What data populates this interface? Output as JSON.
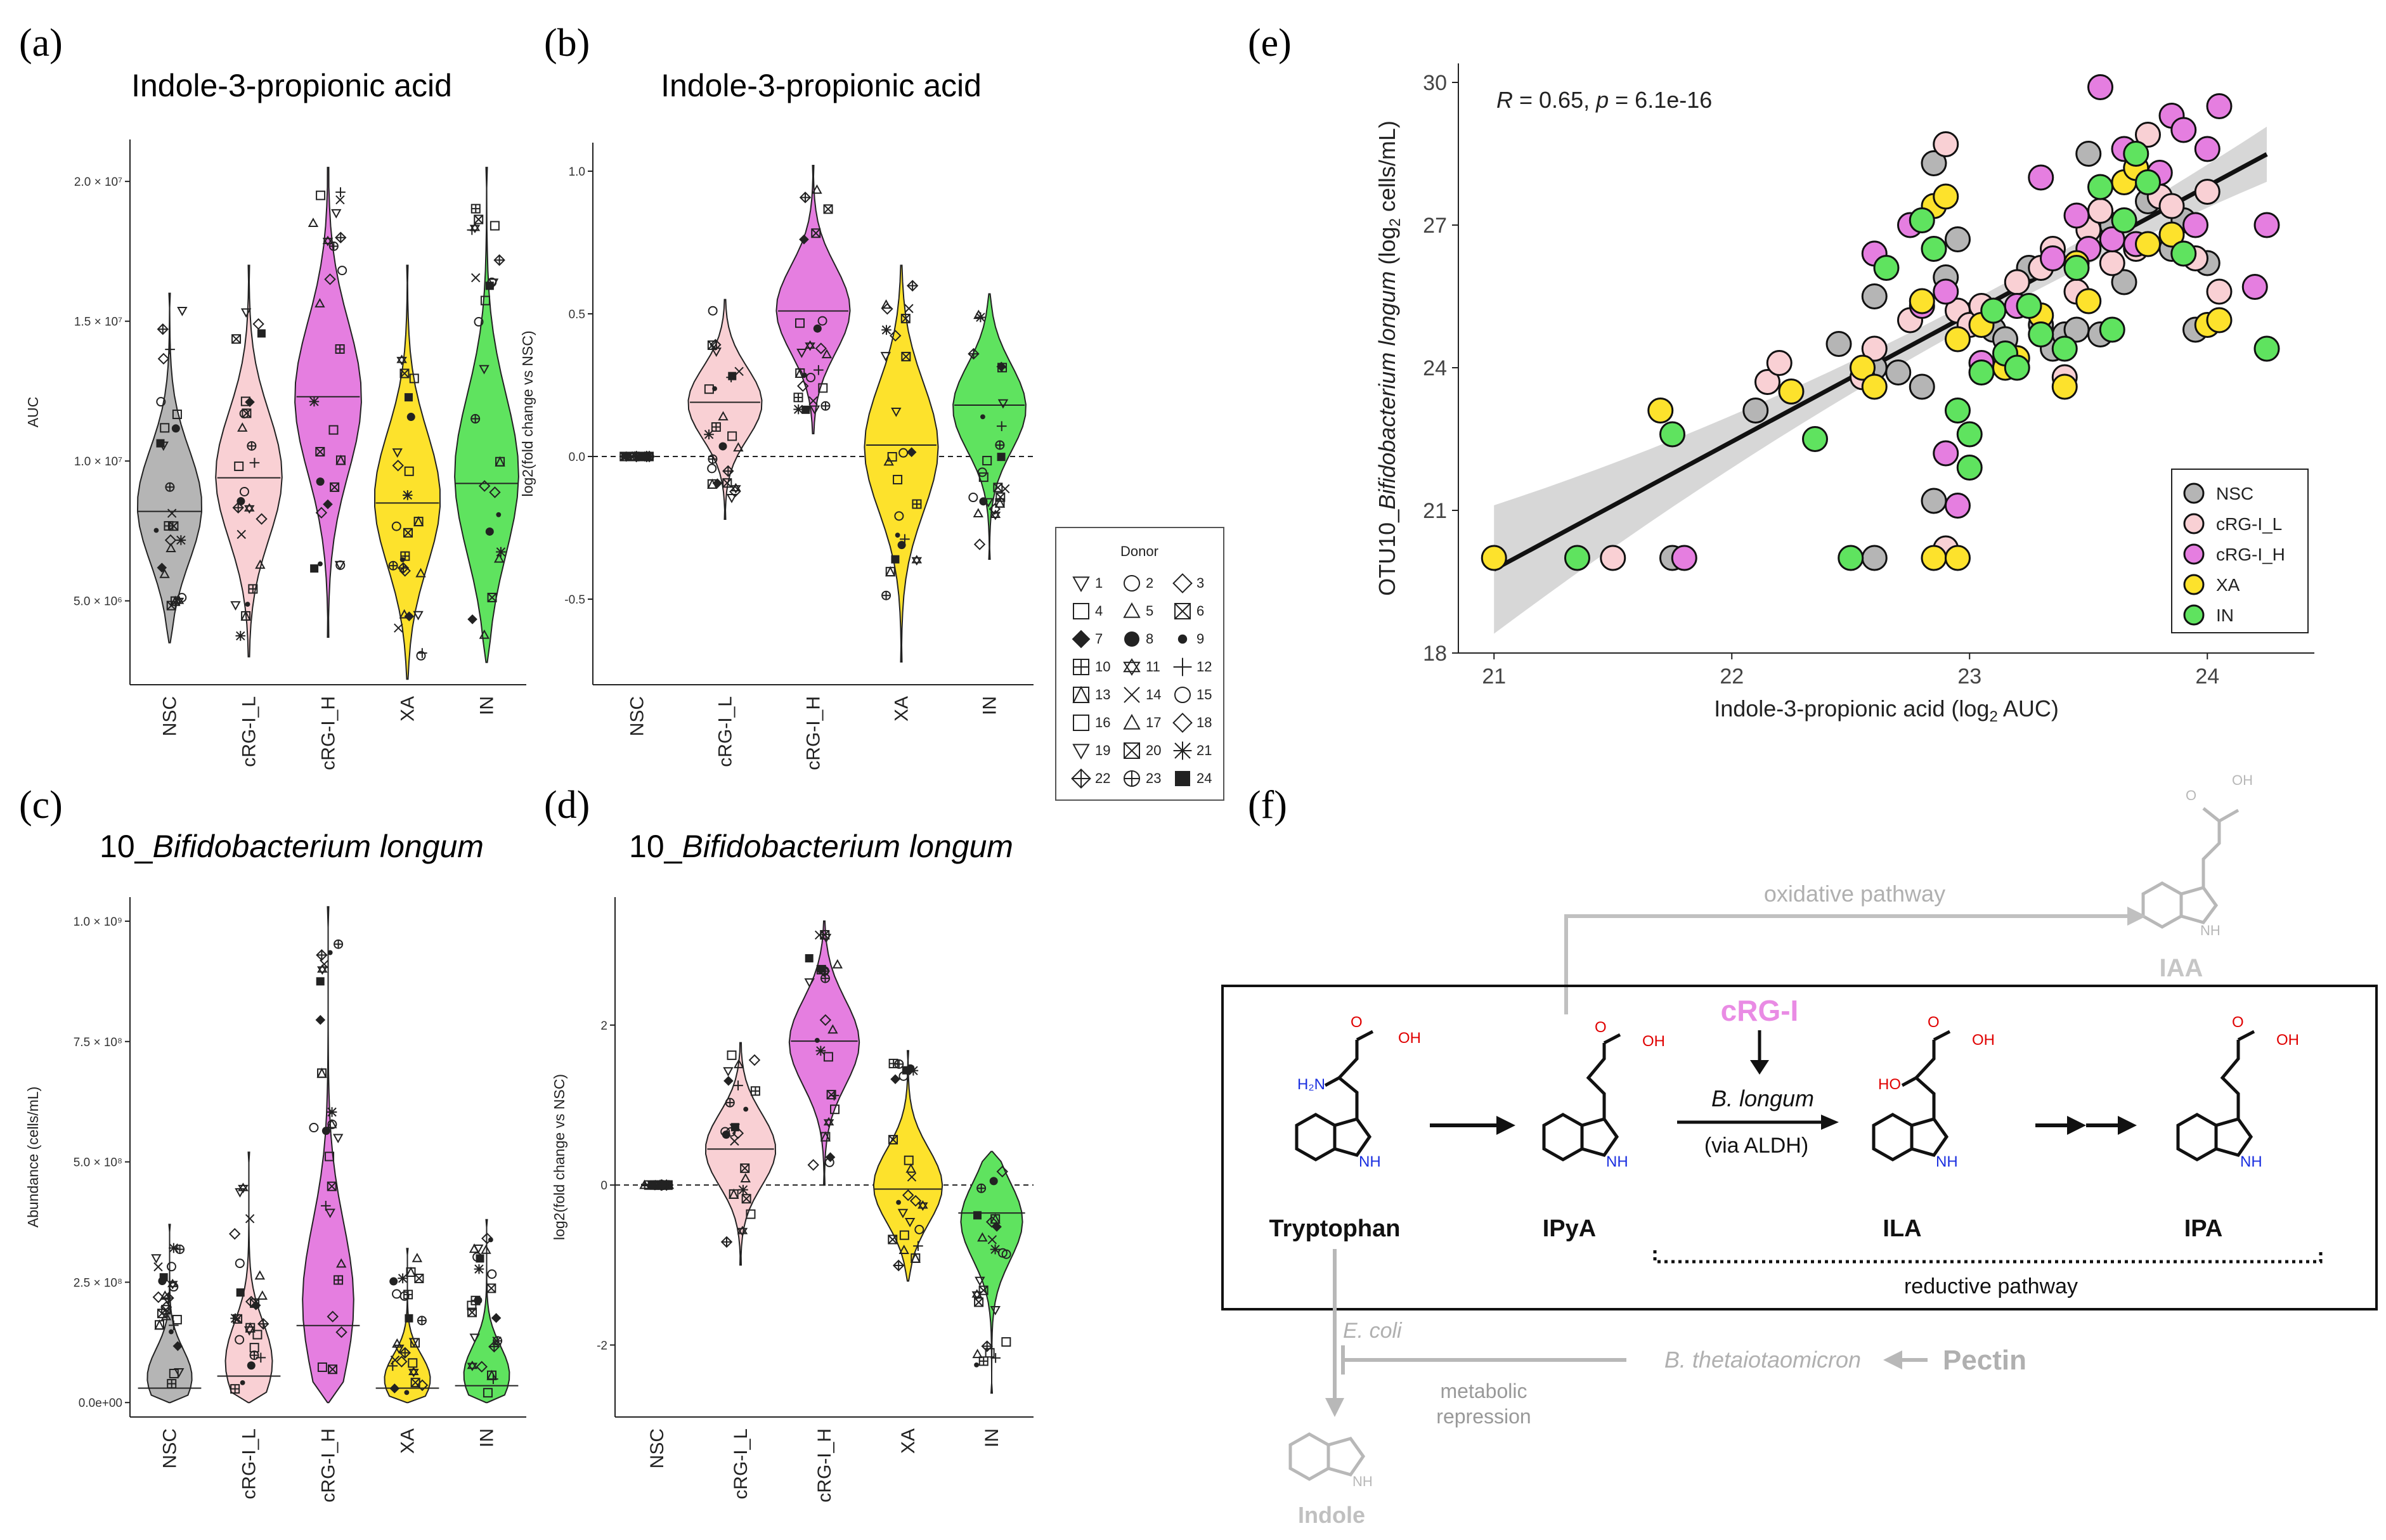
{
  "groups": [
    "NSC",
    "cRG-I_L",
    "cRG-I_H",
    "XA",
    "IN"
  ],
  "colors": {
    "NSC": "#b5b5b5",
    "cRG-I_L": "#f9d0d4",
    "cRG-I_H": "#e57ee0",
    "XA": "#fde22c",
    "IN": "#5fe35f",
    "grey_path": "#b8b8b8",
    "cRG": "#e98be4",
    "red": "#e00000",
    "blue": "#1a2fe0"
  },
  "chart_data": [
    {
      "panel": "(a)",
      "type": "violin",
      "title": "Indole-3-propionic acid",
      "ylabel": "AUC",
      "yticks": [
        "5.0 × 10⁶",
        "1.0 × 10⁷",
        "1.5 × 10⁷",
        "2.0 × 10⁷"
      ],
      "ytick_values": [
        5000000,
        10000000,
        15000000,
        20000000
      ],
      "ylim": [
        2000000,
        21500000
      ],
      "series": [
        {
          "name": "NSC",
          "min": 3500000,
          "max": 16000000,
          "median": 8200000
        },
        {
          "name": "cRG-I_L",
          "min": 3000000,
          "max": 17000000,
          "median": 9400000
        },
        {
          "name": "cRG-I_H",
          "min": 3700000,
          "max": 20500000,
          "median": 12300000
        },
        {
          "name": "XA",
          "min": 2200000,
          "max": 17000000,
          "median": 8500000
        },
        {
          "name": "IN",
          "min": 2800000,
          "max": 20500000,
          "median": 9200000
        }
      ]
    },
    {
      "panel": "(b)",
      "type": "violin",
      "title": "Indole-3-propionic acid",
      "ylabel": "log2(fold change vs NSC)",
      "yticks": [
        "-0.5",
        "0.0",
        "0.5",
        "1.0"
      ],
      "ytick_values": [
        -0.5,
        0.0,
        0.5,
        1.0
      ],
      "ylim": [
        -0.8,
        1.1
      ],
      "reference_line": 0,
      "series": [
        {
          "name": "NSC",
          "min": 0,
          "max": 0,
          "median": 0
        },
        {
          "name": "cRG-I_L",
          "min": -0.22,
          "max": 0.55,
          "median": 0.19
        },
        {
          "name": "cRG-I_H",
          "min": 0.08,
          "max": 1.02,
          "median": 0.51
        },
        {
          "name": "XA",
          "min": -0.72,
          "max": 0.67,
          "median": 0.04
        },
        {
          "name": "IN",
          "min": -0.36,
          "max": 0.57,
          "median": 0.18
        }
      ]
    },
    {
      "panel": "(c)",
      "type": "violin",
      "title_prefix": "10_",
      "title_italic": "Bifidobacterium longum",
      "ylabel": "Abundance (cells/mL)",
      "yticks": [
        "0.0e+00",
        "2.5 × 10⁸",
        "5.0 × 10⁸",
        "7.5 × 10⁸",
        "1.0 × 10⁹"
      ],
      "ytick_values": [
        0,
        250000000,
        500000000,
        750000000,
        1000000000
      ],
      "ylim": [
        -30000000,
        1050000000
      ],
      "series": [
        {
          "name": "NSC",
          "min": 0,
          "max": 370000000,
          "median": 30000000
        },
        {
          "name": "cRG-I_L",
          "min": 0,
          "max": 520000000,
          "median": 55000000
        },
        {
          "name": "cRG-I_H",
          "min": 0,
          "max": 1030000000,
          "median": 160000000
        },
        {
          "name": "XA",
          "min": 0,
          "max": 320000000,
          "median": 30000000
        },
        {
          "name": "IN",
          "min": 0,
          "max": 380000000,
          "median": 35000000
        }
      ]
    },
    {
      "panel": "(d)",
      "type": "violin",
      "title_prefix": "10_",
      "title_italic": "Bifidobacterium longum",
      "ylabel": "log2(fold change vs NSC)",
      "yticks": [
        "-2",
        "0",
        "2"
      ],
      "ytick_values": [
        -2,
        0,
        2
      ],
      "ylim": [
        -2.9,
        3.6
      ],
      "reference_line": 0,
      "series": [
        {
          "name": "NSC",
          "min": 0,
          "max": 0,
          "median": 0
        },
        {
          "name": "cRG-I_L",
          "min": -1.0,
          "max": 1.78,
          "median": 0.45
        },
        {
          "name": "cRG-I_H",
          "min": 0.0,
          "max": 3.3,
          "median": 1.8
        },
        {
          "name": "XA",
          "min": -1.2,
          "max": 1.68,
          "median": -0.05
        },
        {
          "name": "IN",
          "min": -2.6,
          "max": 0.42,
          "median": -0.35
        }
      ]
    },
    {
      "panel": "(e)",
      "type": "scatter",
      "annotation_R": "R",
      "annotation_rest": " = 0.65, ",
      "annotation_p": "p",
      "annotation_p_rest": " = 6.1e-16",
      "xlabel": "Indole-3-propionic acid (log",
      "xlabel_sub": "2",
      "xlabel_end": " AUC)",
      "ylabel_pre": "OTU10_",
      "ylabel_italic": "Bifidobacterium longum",
      "ylabel_mid": " (log",
      "ylabel_sub": "2",
      "ylabel_end": " cells/mL)",
      "xlim": [
        20.85,
        24.45
      ],
      "ylim": [
        18,
        30.4
      ],
      "xticks": [
        "21",
        "22",
        "23",
        "24"
      ],
      "yticks": [
        "18",
        "21",
        "24",
        "27",
        "30"
      ],
      "regression": {
        "intercept": -36.67,
        "slope": 2.687,
        "x_range": [
          21.0,
          24.25
        ]
      },
      "series": [
        {
          "name": "NSC",
          "points": [
            [
              21.75,
              20
            ],
            [
              22.6,
              20
            ],
            [
              22.85,
              21.2
            ],
            [
              22.1,
              23.1
            ],
            [
              22.45,
              24.5
            ],
            [
              22.6,
              25.5
            ],
            [
              22.6,
              24
            ],
            [
              22.7,
              23.9
            ],
            [
              22.8,
              23.6
            ],
            [
              22.85,
              28.3
            ],
            [
              22.9,
              25.9
            ],
            [
              22.95,
              26.7
            ],
            [
              23.0,
              25.1
            ],
            [
              23.1,
              24.8
            ],
            [
              23.15,
              24.6
            ],
            [
              23.25,
              26.1
            ],
            [
              23.3,
              24.9
            ],
            [
              23.35,
              24.4
            ],
            [
              23.4,
              24.7
            ],
            [
              23.45,
              24.8
            ],
            [
              23.55,
              24.7
            ],
            [
              23.5,
              28.5
            ],
            [
              23.55,
              27.3
            ],
            [
              23.6,
              27.0
            ],
            [
              23.65,
              25.8
            ],
            [
              23.75,
              27.5
            ],
            [
              23.85,
              26.5
            ],
            [
              23.9,
              27.1
            ],
            [
              23.95,
              24.8
            ],
            [
              24.0,
              26.2
            ]
          ]
        },
        {
          "name": "cRG-I_L",
          "points": [
            [
              21.5,
              20
            ],
            [
              22.9,
              20.2
            ],
            [
              22.15,
              23.7
            ],
            [
              22.2,
              24.1
            ],
            [
              22.55,
              23.8
            ],
            [
              22.6,
              24.4
            ],
            [
              22.9,
              28.7
            ],
            [
              22.95,
              25.2
            ],
            [
              23.0,
              24.9
            ],
            [
              23.05,
              25.3
            ],
            [
              23.2,
              25.8
            ],
            [
              23.3,
              26.1
            ],
            [
              23.35,
              26.5
            ],
            [
              23.4,
              23.8
            ],
            [
              23.45,
              25.6
            ],
            [
              23.5,
              26.9
            ],
            [
              23.55,
              27.3
            ],
            [
              23.6,
              26.2
            ],
            [
              23.7,
              26.5
            ],
            [
              23.75,
              28.9
            ],
            [
              23.8,
              27.6
            ],
            [
              23.85,
              27.4
            ],
            [
              23.95,
              26.3
            ],
            [
              24.0,
              27.7
            ],
            [
              24.05,
              25.6
            ],
            [
              22.75,
              25.0
            ]
          ]
        },
        {
          "name": "cRG-I_H",
          "points": [
            [
              21.8,
              20
            ],
            [
              22.95,
              21.1
            ],
            [
              22.9,
              22.2
            ],
            [
              22.6,
              26.4
            ],
            [
              22.8,
              25.3
            ],
            [
              22.9,
              25.6
            ],
            [
              23.05,
              24.1
            ],
            [
              23.2,
              25.3
            ],
            [
              23.3,
              28.0
            ],
            [
              23.35,
              26.3
            ],
            [
              23.45,
              27.2
            ],
            [
              23.5,
              26.5
            ],
            [
              23.55,
              29.9
            ],
            [
              23.6,
              26.7
            ],
            [
              23.65,
              28.6
            ],
            [
              23.7,
              26.6
            ],
            [
              23.8,
              28.1
            ],
            [
              23.85,
              29.3
            ],
            [
              23.9,
              29.0
            ],
            [
              23.95,
              27.0
            ],
            [
              24.0,
              28.6
            ],
            [
              24.05,
              29.5
            ],
            [
              24.2,
              25.7
            ],
            [
              24.25,
              27.0
            ],
            [
              22.75,
              27.0
            ]
          ]
        },
        {
          "name": "XA",
          "points": [
            [
              21.0,
              20
            ],
            [
              22.85,
              20
            ],
            [
              22.95,
              20
            ],
            [
              21.7,
              23.1
            ],
            [
              22.25,
              23.5
            ],
            [
              22.55,
              24.0
            ],
            [
              22.6,
              23.6
            ],
            [
              22.8,
              25.4
            ],
            [
              22.85,
              27.4
            ],
            [
              22.9,
              27.6
            ],
            [
              22.95,
              24.6
            ],
            [
              23.05,
              24.9
            ],
            [
              23.2,
              24.2
            ],
            [
              23.3,
              25.1
            ],
            [
              23.4,
              23.6
            ],
            [
              23.45,
              26.2
            ],
            [
              23.5,
              25.4
            ],
            [
              23.65,
              27.9
            ],
            [
              23.7,
              28.2
            ],
            [
              23.75,
              26.6
            ],
            [
              23.85,
              26.8
            ],
            [
              24.0,
              24.9
            ],
            [
              24.05,
              25.0
            ],
            [
              23.15,
              24.0
            ]
          ]
        },
        {
          "name": "IN",
          "points": [
            [
              21.35,
              20
            ],
            [
              22.5,
              20
            ],
            [
              22.35,
              22.5
            ],
            [
              21.75,
              22.6
            ],
            [
              22.65,
              26.1
            ],
            [
              22.8,
              27.1
            ],
            [
              22.85,
              26.5
            ],
            [
              22.95,
              23.1
            ],
            [
              23.0,
              22.6
            ],
            [
              23.05,
              23.9
            ],
            [
              23.1,
              25.2
            ],
            [
              23.15,
              24.3
            ],
            [
              23.2,
              24.0
            ],
            [
              23.25,
              25.3
            ],
            [
              23.3,
              24.7
            ],
            [
              23.4,
              24.4
            ],
            [
              23.45,
              26.1
            ],
            [
              23.55,
              27.8
            ],
            [
              23.6,
              24.8
            ],
            [
              23.65,
              27.1
            ],
            [
              23.7,
              28.5
            ],
            [
              23.75,
              27.9
            ],
            [
              23.9,
              26.4
            ],
            [
              24.25,
              24.4
            ],
            [
              23.0,
              21.9
            ]
          ]
        }
      ]
    }
  ],
  "panels": {
    "a": "(a)",
    "b": "(b)",
    "c": "(c)",
    "d": "(d)",
    "e": "(e)",
    "f": "(f)"
  },
  "donor_legend": {
    "title": "Donor",
    "numbers": [
      "1",
      "2",
      "3",
      "4",
      "5",
      "6",
      "7",
      "8",
      "9",
      "10",
      "11",
      "12",
      "13",
      "14",
      "15",
      "16",
      "17",
      "18",
      "19",
      "20",
      "21",
      "22",
      "23",
      "24"
    ]
  },
  "pathway": {
    "oxidative": "oxidative pathway",
    "reductive": "reductive pathway",
    "crg": "cRG-I",
    "blongum": "B. longum",
    "via": "(via ALDH)",
    "tryptophan": "Tryptophan",
    "ipya": "IPyA",
    "ila": "ILA",
    "ipa": "IPA",
    "iaa": "IAA",
    "indole": "Indole",
    "ecoli": "E. coli",
    "btheta": "B. thetaiotaomicron",
    "pectin": "Pectin",
    "metabolic": "metabolic",
    "repression": "repression",
    "oh": "OH",
    "o": "O",
    "nh": "NH",
    "h2n": "H₂N",
    "ho": "HO"
  }
}
